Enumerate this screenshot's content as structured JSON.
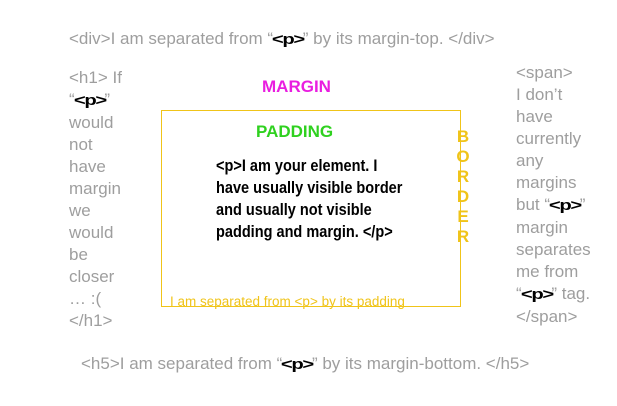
{
  "top_note": {
    "before": "<div>I am separated from “",
    "tag": "<p>",
    "after": "” by its margin-top. </div>"
  },
  "bottom_note": {
    "before": "<h5>I am separated from “",
    "tag": "<p>",
    "after": "” by its margin-bottom. </h5>"
  },
  "left_note": {
    "line1": "<h1> If",
    "line2_before": "“",
    "line2_tag": "<p>",
    "line2_after": "”",
    "lines": [
      "would",
      "not",
      "have",
      "margin",
      "we",
      "would",
      "be",
      "closer",
      "… :(",
      "</h1>"
    ]
  },
  "right_note": {
    "lines_a": [
      "<span>",
      "I don’t",
      "have",
      "currently",
      "any",
      "margins"
    ],
    "line_but_before": "but “",
    "line_but_tag": "<p>",
    "line_but_after": "”",
    "lines_b": [
      "margin",
      "separates",
      "me from"
    ],
    "line_tag_before": "“",
    "line_tag_tag": "<p>",
    "line_tag_after": "” tag.",
    "line_last": "</span>"
  },
  "diagram": {
    "margin_label": "MARGIN",
    "padding_label": "PADDING",
    "border_letters": [
      "B",
      "O",
      "R",
      "D",
      "E",
      "R"
    ],
    "element_lines": [
      "<p>I am your element. I",
      "have usually visible border",
      "and usually not visible",
      "padding and margin. </p>"
    ],
    "padding_note": "I am separated from <p> by its padding"
  },
  "colors": {
    "gray_text": "#9e9e9e",
    "margin": "#e91ee0",
    "padding": "#2fd11f",
    "border": "#f0c419",
    "element": "#000000"
  }
}
